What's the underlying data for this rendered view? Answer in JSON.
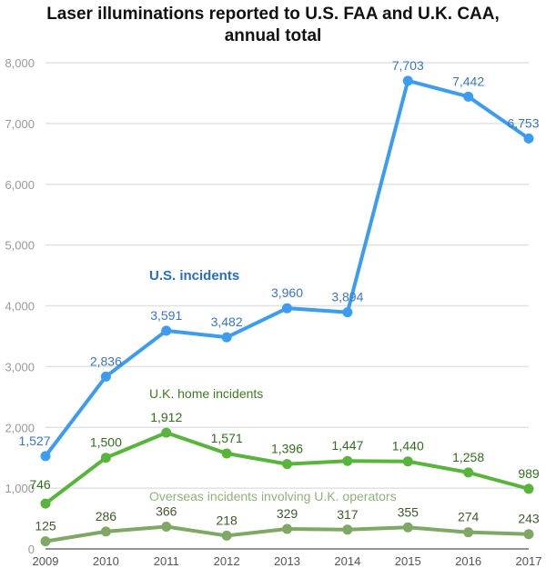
{
  "chart_data": {
    "type": "line",
    "title_line1": "Laser illuminations reported to U.S. FAA and U.K. CAA,",
    "title_line2": "annual total",
    "x": [
      "2009",
      "2010",
      "2011",
      "2012",
      "2013",
      "2014",
      "2015",
      "2016",
      "2017"
    ],
    "ylim": [
      0,
      8000
    ],
    "yticks": [
      0,
      1000,
      2000,
      3000,
      4000,
      5000,
      6000,
      7000,
      8000
    ],
    "ytick_labels": [
      "0",
      "1,000",
      "2,000",
      "3,000",
      "4,000",
      "5,000",
      "6,000",
      "7,000",
      "8,000"
    ],
    "grid": true,
    "series": [
      {
        "name": "U.S. incidents",
        "color": "#3b9cf0",
        "label_color": "#3a75c4",
        "values": [
          1527,
          2836,
          3591,
          3482,
          3960,
          3894,
          7703,
          7442,
          6753
        ],
        "labels": [
          "1,527",
          "2,836",
          "3,591",
          "3,482",
          "3,960",
          "3,894",
          "7,703",
          "7,442",
          "6,753"
        ]
      },
      {
        "name": "U.K. home incidents",
        "color": "#58b43a",
        "label_color": "#2f6e1e",
        "values": [
          746,
          1500,
          1912,
          1571,
          1396,
          1447,
          1440,
          1258,
          989
        ],
        "labels": [
          "746",
          "1,500",
          "1,912",
          "1,571",
          "1,396",
          "1,447",
          "1,440",
          "1,258",
          "989"
        ]
      },
      {
        "name": "Overseas incidents involving U.K. operators",
        "color": "#7fa865",
        "label_color": "#3d5a2c",
        "values": [
          125,
          286,
          366,
          218,
          329,
          317,
          355,
          274,
          243
        ],
        "labels": [
          "125",
          "286",
          "366",
          "218",
          "329",
          "317",
          "355",
          "274",
          "243"
        ]
      }
    ]
  }
}
